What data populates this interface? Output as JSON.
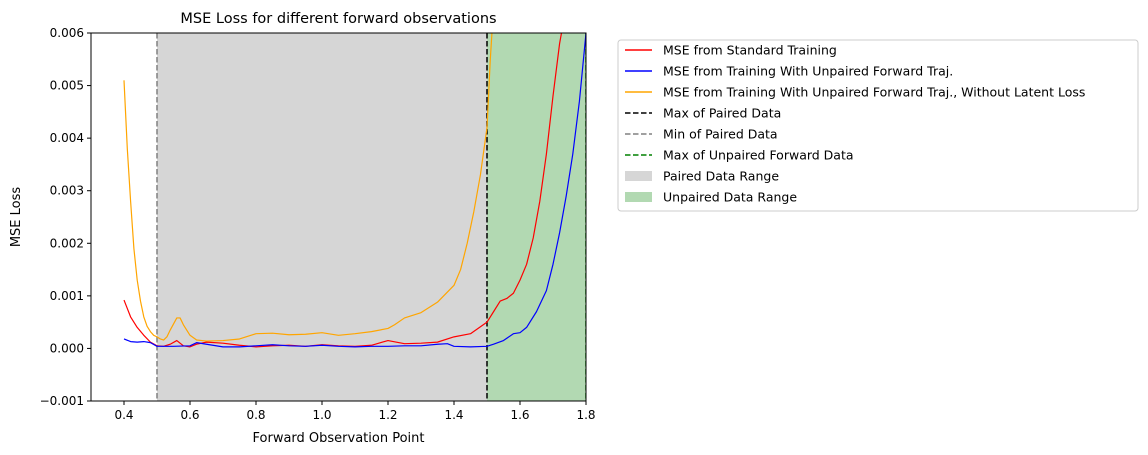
{
  "chart_data": {
    "type": "line",
    "title": "MSE Loss for different forward observations",
    "xlabel": "Forward Observation Point",
    "ylabel": "MSE Loss",
    "xlim": [
      0.3,
      1.8
    ],
    "ylim": [
      -0.001,
      0.006
    ],
    "xticks": [
      0.4,
      0.6,
      0.8,
      1.0,
      1.2,
      1.4,
      1.6,
      1.8
    ],
    "xtick_labels": [
      "0.4",
      "0.6",
      "0.8",
      "1.0",
      "1.2",
      "1.4",
      "1.6",
      "1.8"
    ],
    "yticks": [
      -0.001,
      0.0,
      0.001,
      0.002,
      0.003,
      0.004,
      0.005,
      0.006
    ],
    "ytick_labels": [
      "−0.001",
      "0.000",
      "0.001",
      "0.002",
      "0.003",
      "0.004",
      "0.005",
      "0.006"
    ],
    "grid": false,
    "legend_position": "outside-right",
    "shaded_regions": [
      {
        "name": "Paired Data Range",
        "x0": 0.5,
        "x1": 1.5,
        "color": "#d6d6d6"
      },
      {
        "name": "Unpaired Data Range",
        "x0": 1.5,
        "x1": 1.8,
        "color": "#b2d9b2"
      }
    ],
    "vlines": [
      {
        "name": "Max of Paired Data",
        "x": 1.5,
        "color": "#000000",
        "dash": "dashed"
      },
      {
        "name": "Min of Paired Data",
        "x": 0.5,
        "color": "#808080",
        "dash": "dashed"
      },
      {
        "name": "Max of Unpaired Forward Data",
        "x": 1.8,
        "color": "#008000",
        "dash": "dashed"
      }
    ],
    "series": [
      {
        "name": "MSE from Standard Training",
        "color": "#ff0000",
        "x": [
          0.4,
          0.42,
          0.44,
          0.46,
          0.48,
          0.5,
          0.52,
          0.54,
          0.56,
          0.58,
          0.6,
          0.62,
          0.65,
          0.7,
          0.75,
          0.8,
          0.85,
          0.9,
          0.95,
          1.0,
          1.05,
          1.1,
          1.15,
          1.2,
          1.25,
          1.3,
          1.35,
          1.4,
          1.45,
          1.5,
          1.52,
          1.54,
          1.56,
          1.58,
          1.6,
          1.62,
          1.64,
          1.66,
          1.68,
          1.7,
          1.72,
          1.74
        ],
        "y": [
          0.00092,
          0.0006,
          0.0004,
          0.00025,
          0.00012,
          5e-05,
          4e-05,
          8e-05,
          0.00015,
          5e-05,
          3e-05,
          8e-05,
          0.00012,
          0.0001,
          6e-05,
          3e-05,
          5e-05,
          6e-05,
          4e-05,
          7e-05,
          5e-05,
          4e-05,
          6e-05,
          0.00015,
          9e-05,
          0.0001,
          0.00012,
          0.00022,
          0.00028,
          0.0005,
          0.0007,
          0.0009,
          0.00095,
          0.00105,
          0.0013,
          0.0016,
          0.0021,
          0.0028,
          0.0037,
          0.0048,
          0.0058,
          0.0065
        ]
      },
      {
        "name": "MSE from Training With Unpaired Forward Traj.",
        "color": "#0000ff",
        "x": [
          0.4,
          0.42,
          0.44,
          0.46,
          0.48,
          0.5,
          0.55,
          0.6,
          0.62,
          0.65,
          0.7,
          0.75,
          0.8,
          0.85,
          0.9,
          0.95,
          1.0,
          1.05,
          1.1,
          1.15,
          1.2,
          1.25,
          1.3,
          1.35,
          1.38,
          1.4,
          1.45,
          1.5,
          1.52,
          1.55,
          1.58,
          1.6,
          1.62,
          1.65,
          1.68,
          1.7,
          1.72,
          1.74,
          1.76,
          1.78,
          1.8
        ],
        "y": [
          0.00018,
          0.00013,
          0.00012,
          0.00013,
          0.00011,
          4e-05,
          4e-05,
          5e-05,
          0.00011,
          8e-05,
          3e-05,
          3e-05,
          5e-05,
          7e-05,
          5e-05,
          4e-05,
          6e-05,
          4e-05,
          3e-05,
          4e-05,
          4e-05,
          5e-05,
          5e-05,
          8e-05,
          9e-05,
          4e-05,
          3e-05,
          4e-05,
          8e-05,
          0.00015,
          0.00028,
          0.0003,
          0.0004,
          0.0007,
          0.0011,
          0.0016,
          0.0022,
          0.0029,
          0.0037,
          0.0047,
          0.006
        ]
      },
      {
        "name": "MSE from Training With Unpaired Forward Traj., Without Latent Loss",
        "color": "#ffa500",
        "x": [
          0.4,
          0.41,
          0.42,
          0.43,
          0.44,
          0.45,
          0.46,
          0.47,
          0.48,
          0.49,
          0.5,
          0.51,
          0.52,
          0.53,
          0.54,
          0.56,
          0.57,
          0.58,
          0.6,
          0.62,
          0.65,
          0.7,
          0.75,
          0.8,
          0.85,
          0.9,
          0.95,
          1.0,
          1.05,
          1.1,
          1.15,
          1.2,
          1.22,
          1.25,
          1.3,
          1.35,
          1.4,
          1.42,
          1.44,
          1.46,
          1.48,
          1.5,
          1.51,
          1.52
        ],
        "y": [
          0.0051,
          0.0038,
          0.0028,
          0.0019,
          0.0013,
          0.0009,
          0.0006,
          0.00042,
          0.00032,
          0.00025,
          0.00022,
          0.00018,
          0.00016,
          0.00022,
          0.00035,
          0.00058,
          0.00058,
          0.00045,
          0.00025,
          0.00016,
          0.00014,
          0.00015,
          0.00018,
          0.00028,
          0.00029,
          0.00026,
          0.00027,
          0.0003,
          0.00025,
          0.00028,
          0.00032,
          0.00038,
          0.00045,
          0.00058,
          0.00068,
          0.00088,
          0.0012,
          0.0015,
          0.002,
          0.0026,
          0.0033,
          0.0042,
          0.0055,
          0.0065
        ]
      }
    ],
    "legend": [
      {
        "label": "MSE from Standard Training",
        "kind": "line",
        "color": "#ff0000",
        "dash": "solid"
      },
      {
        "label": "MSE from Training With Unpaired Forward Traj.",
        "kind": "line",
        "color": "#0000ff",
        "dash": "solid"
      },
      {
        "label": "MSE from Training With Unpaired Forward Traj., Without Latent Loss",
        "kind": "line",
        "color": "#ffa500",
        "dash": "solid"
      },
      {
        "label": "Max of Paired Data",
        "kind": "line",
        "color": "#000000",
        "dash": "dashed"
      },
      {
        "label": "Min of Paired Data",
        "kind": "line",
        "color": "#808080",
        "dash": "dashed"
      },
      {
        "label": "Max of Unpaired Forward Data",
        "kind": "line",
        "color": "#008000",
        "dash": "dashed"
      },
      {
        "label": "Paired Data Range",
        "kind": "patch",
        "color": "#d6d6d6"
      },
      {
        "label": "Unpaired Data Range",
        "kind": "patch",
        "color": "#b2d9b2"
      }
    ]
  }
}
